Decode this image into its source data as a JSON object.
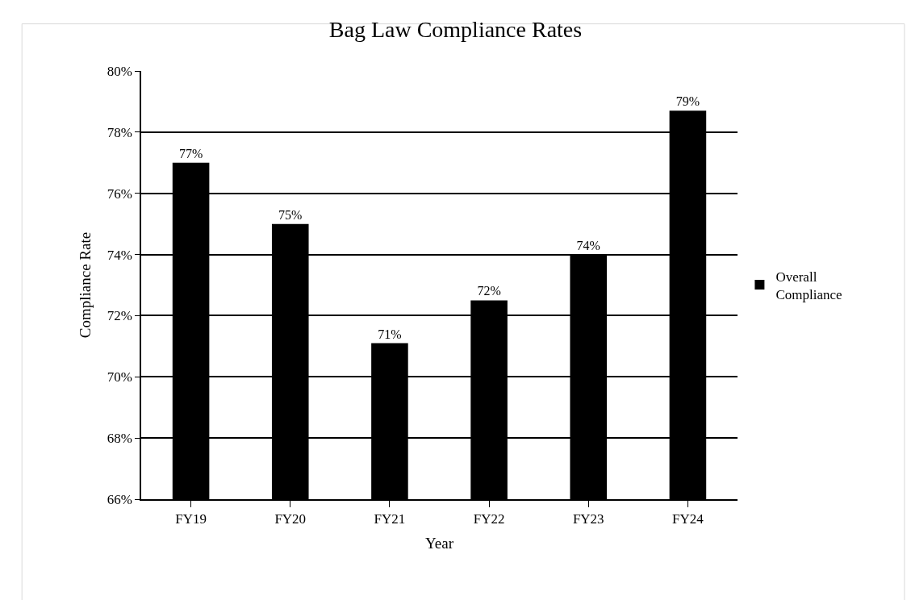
{
  "chart_data": {
    "type": "bar",
    "title": "Bag Law Compliance Rates",
    "xlabel": "Year",
    "ylabel": "Compliance Rate",
    "categories": [
      "FY19",
      "FY20",
      "FY21",
      "FY22",
      "FY23",
      "FY24"
    ],
    "series": [
      {
        "name": "Overall Compliance",
        "color": "#000000",
        "values": [
          77.0,
          75.0,
          71.1,
          72.5,
          74.0,
          78.7
        ],
        "value_labels": [
          "77%",
          "75%",
          "71%",
          "72%",
          "74%",
          "79%"
        ]
      }
    ],
    "ylim": [
      66,
      80
    ],
    "yticks": [
      {
        "value": 66,
        "label": "66%"
      },
      {
        "value": 68,
        "label": "68%"
      },
      {
        "value": 70,
        "label": "70%"
      },
      {
        "value": 72,
        "label": "72%"
      },
      {
        "value": 74,
        "label": "74%"
      },
      {
        "value": 76,
        "label": "76%"
      },
      {
        "value": 78,
        "label": "78%"
      },
      {
        "value": 80,
        "label": "80%"
      }
    ],
    "grid": "y",
    "legend": "right"
  }
}
